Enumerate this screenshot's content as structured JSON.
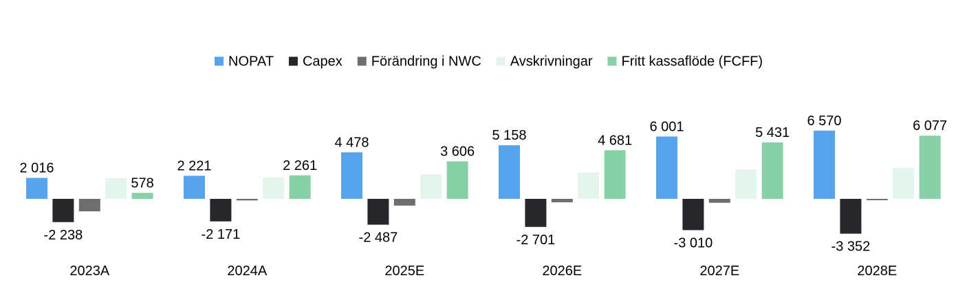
{
  "chart_data": {
    "type": "bar",
    "title": "",
    "xlabel": "",
    "ylabel": "",
    "categories": [
      "2023A",
      "2024A",
      "2025E",
      "2026E",
      "2027E",
      "2028E"
    ],
    "ylim": [
      -3500,
      7000
    ],
    "grid": false,
    "legend_position": "top-center",
    "series": [
      {
        "name": "NOPAT",
        "color": "#55a4ec",
        "values": [
          2016,
          2221,
          4478,
          5158,
          6001,
          6570
        ],
        "labels": [
          "2 016",
          "2 221",
          "4 478",
          "5 158",
          "6 001",
          "6 570"
        ]
      },
      {
        "name": "Capex",
        "color": "#25272b",
        "values": [
          -2238,
          -2171,
          -2487,
          -2701,
          -3010,
          -3352
        ],
        "labels": [
          "-2 238",
          "-2 171",
          "-2 487",
          "-2 701",
          "-3 010",
          "-3 352"
        ]
      },
      {
        "name": "Förändring i NWC",
        "color": "#6e6e6e",
        "values": [
          -1200,
          -150,
          -650,
          -330,
          -380,
          -120
        ],
        "labels": [
          "",
          "",
          "",
          "",
          "",
          ""
        ]
      },
      {
        "name": "Avskrivningar",
        "color": "#e4f5ec",
        "values": [
          2000,
          2050,
          2350,
          2550,
          2850,
          2990
        ],
        "labels": [
          "",
          "",
          "",
          "",
          "",
          ""
        ]
      },
      {
        "name": "Fritt kassaflöde (FCFF)",
        "color": "#86d1a5",
        "values": [
          578,
          2261,
          3606,
          4681,
          5431,
          6077
        ],
        "labels": [
          "578",
          "2 261",
          "3 606",
          "4 681",
          "5 431",
          "6 077"
        ]
      }
    ]
  }
}
